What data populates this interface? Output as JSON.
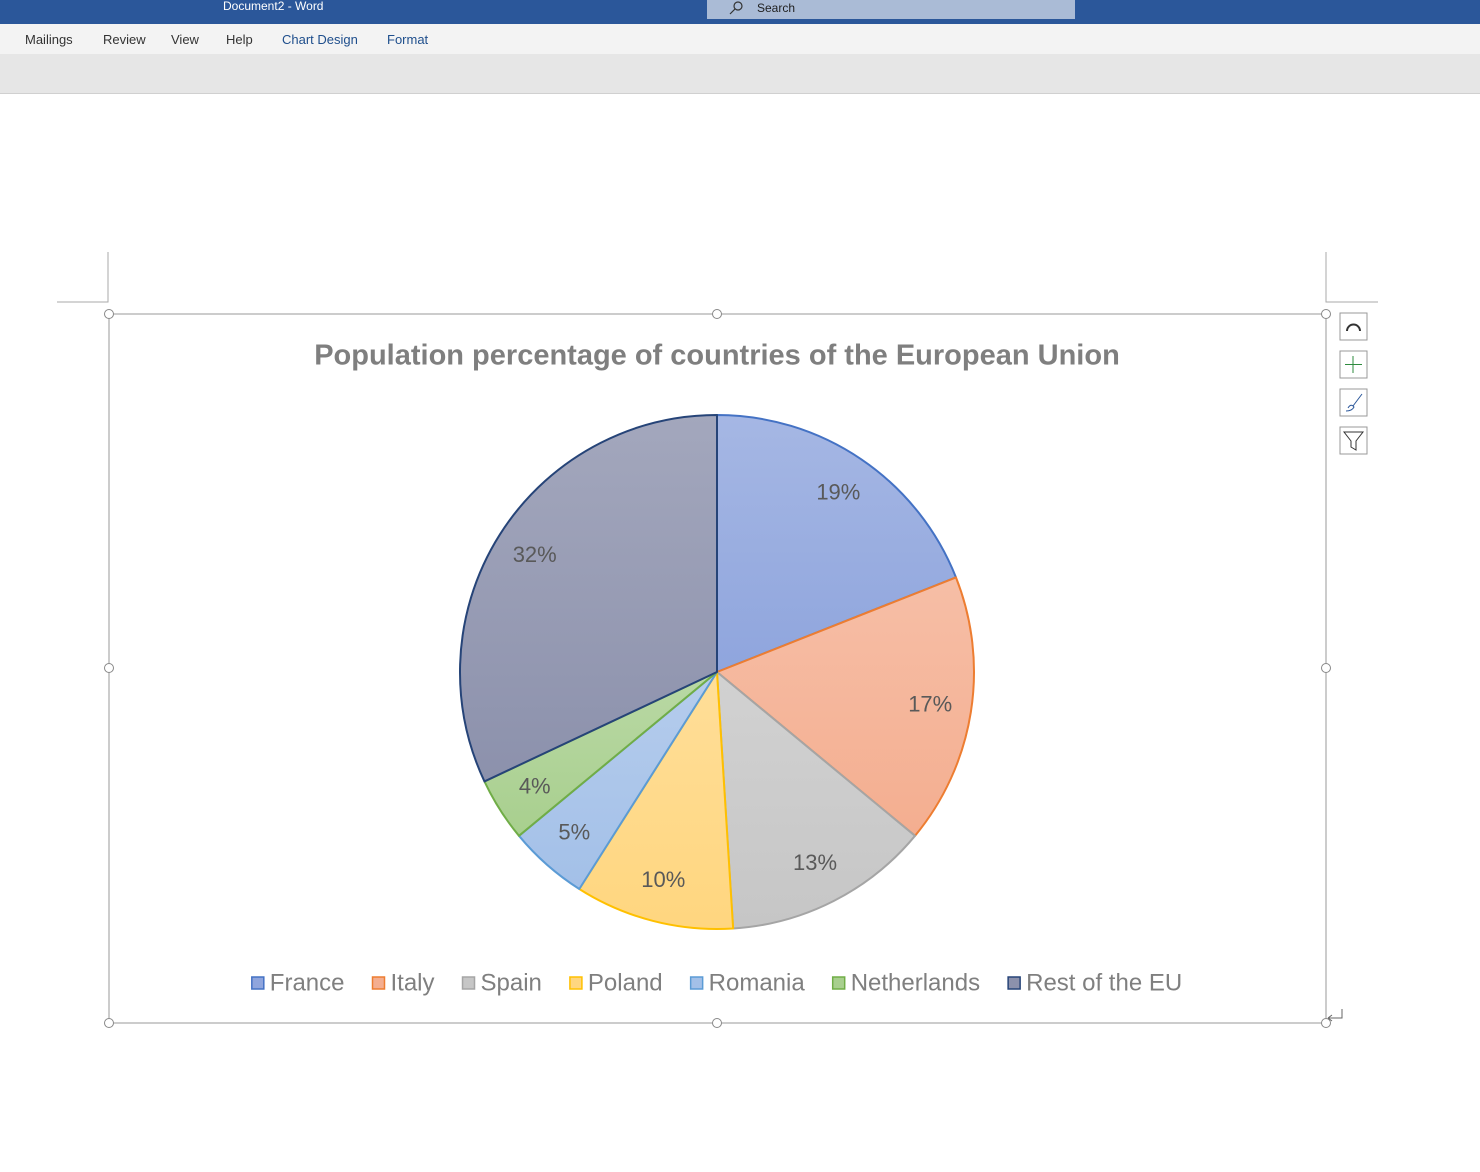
{
  "window": {
    "title": "Document2  -  Word",
    "search": "Search"
  },
  "tabs": [
    "Mailings",
    "Review",
    "View",
    "Help",
    "Chart Design",
    "Format"
  ],
  "chart_data": {
    "type": "pie",
    "title": "Population percentage of countries of the European Union",
    "categories": [
      "France",
      "Italy",
      "Spain",
      "Poland",
      "Romania",
      "Netherlands",
      "Rest of the EU"
    ],
    "values": [
      19,
      17,
      13,
      10,
      5,
      4,
      32
    ],
    "value_labels": [
      "19%",
      "17%",
      "13%",
      "10%",
      "5%",
      "4%",
      "32%"
    ],
    "colors": [
      "#8fa5dd",
      "#f4ae90",
      "#c6c6c6",
      "#ffd67f",
      "#a3c0e8",
      "#a8cf8e",
      "#8c91ac"
    ],
    "edge_colors": [
      "#4472c4",
      "#ed7d31",
      "#a5a5a5",
      "#ffc000",
      "#5b9bd5",
      "#70ad47",
      "#264478"
    ],
    "legend": "bottom"
  }
}
